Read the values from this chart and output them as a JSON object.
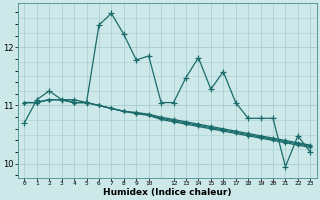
{
  "xlabel": "Humidex (Indice chaleur)",
  "background_color": "#cde8e8",
  "grid_color": "#aacece",
  "line_color": "#1a6b6b",
  "xlim": [
    -0.5,
    23.5
  ],
  "ylim": [
    9.75,
    12.75
  ],
  "yticks": [
    10,
    11,
    12
  ],
  "xtick_positions": [
    0,
    1,
    2,
    3,
    4,
    5,
    6,
    7,
    8,
    9,
    10,
    12,
    13,
    14,
    15,
    16,
    17,
    18,
    19,
    20,
    21,
    22,
    23
  ],
  "xtick_labels": [
    "0",
    "1",
    "2",
    "3",
    "4",
    "5",
    "6",
    "7",
    "8",
    "9",
    "10",
    "12",
    "13",
    "14",
    "15",
    "16",
    "17",
    "18",
    "19",
    "20",
    "21",
    "22",
    "23"
  ],
  "series": [
    [
      10.7,
      11.1,
      11.25,
      11.1,
      11.1,
      11.05,
      12.38,
      12.58,
      12.22,
      11.78,
      11.85,
      11.05,
      11.05,
      11.48,
      11.82,
      11.28,
      11.58,
      11.05,
      10.78,
      10.78,
      10.78,
      9.95,
      10.48,
      10.2
    ],
    [
      11.05,
      11.05,
      11.1,
      11.1,
      11.05,
      11.05,
      11.0,
      10.95,
      10.9,
      10.88,
      10.85,
      10.8,
      10.76,
      10.72,
      10.68,
      10.64,
      10.6,
      10.56,
      10.52,
      10.48,
      10.44,
      10.4,
      10.36,
      10.32
    ],
    [
      11.05,
      11.05,
      11.1,
      11.1,
      11.05,
      11.05,
      11.0,
      10.95,
      10.9,
      10.87,
      10.84,
      10.78,
      10.74,
      10.7,
      10.66,
      10.62,
      10.58,
      10.54,
      10.5,
      10.46,
      10.42,
      10.38,
      10.34,
      10.3
    ],
    [
      11.05,
      11.05,
      11.1,
      11.1,
      11.05,
      11.05,
      11.0,
      10.95,
      10.9,
      10.86,
      10.83,
      10.76,
      10.72,
      10.68,
      10.64,
      10.6,
      10.56,
      10.52,
      10.48,
      10.44,
      10.4,
      10.36,
      10.32,
      10.28
    ]
  ]
}
